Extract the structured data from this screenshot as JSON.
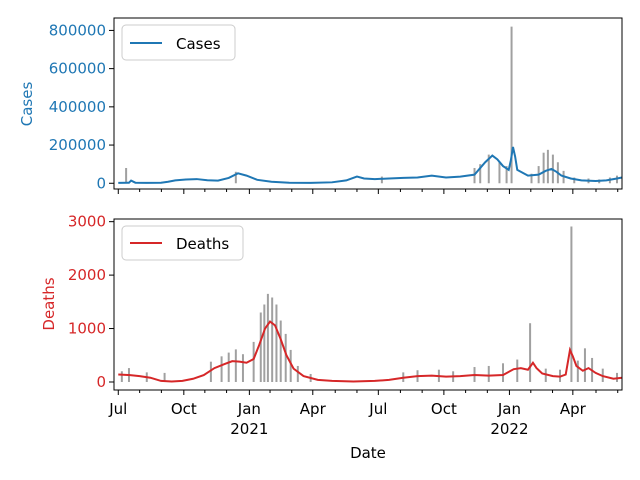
{
  "chart_data": [
    {
      "type": "line",
      "panel": "top",
      "ylabel": "Cases",
      "color": "#1f77b4",
      "raw_color": "#a0a0a0",
      "ylim": [
        -30000,
        865000
      ],
      "yticks": [
        0,
        200000,
        400000,
        600000,
        800000
      ],
      "ytick_labels": [
        "0",
        "200000",
        "400000",
        "600000",
        "800000"
      ],
      "legend": [
        "Cases"
      ],
      "legend_position": "top-left",
      "series_smoothed": {
        "name": "Cases",
        "points": [
          [
            0,
            2000
          ],
          [
            15,
            3000
          ],
          [
            18,
            14000
          ],
          [
            24,
            3000
          ],
          [
            40,
            2000
          ],
          [
            60,
            3000
          ],
          [
            70,
            8000
          ],
          [
            80,
            15000
          ],
          [
            95,
            20000
          ],
          [
            110,
            22000
          ],
          [
            125,
            16000
          ],
          [
            140,
            14000
          ],
          [
            155,
            28000
          ],
          [
            168,
            52000
          ],
          [
            180,
            40000
          ],
          [
            195,
            18000
          ],
          [
            215,
            8000
          ],
          [
            240,
            3000
          ],
          [
            270,
            2000
          ],
          [
            300,
            5000
          ],
          [
            320,
            15000
          ],
          [
            335,
            35000
          ],
          [
            345,
            25000
          ],
          [
            360,
            22000
          ],
          [
            380,
            25000
          ],
          [
            400,
            28000
          ],
          [
            420,
            30000
          ],
          [
            440,
            40000
          ],
          [
            460,
            30000
          ],
          [
            480,
            35000
          ],
          [
            500,
            45000
          ],
          [
            515,
            110000
          ],
          [
            525,
            145000
          ],
          [
            532,
            125000
          ],
          [
            540,
            90000
          ],
          [
            548,
            70000
          ],
          [
            551,
            120000
          ],
          [
            554,
            190000
          ],
          [
            557,
            140000
          ],
          [
            560,
            70000
          ],
          [
            575,
            40000
          ],
          [
            590,
            45000
          ],
          [
            600,
            65000
          ],
          [
            608,
            75000
          ],
          [
            615,
            60000
          ],
          [
            622,
            40000
          ],
          [
            635,
            25000
          ],
          [
            650,
            15000
          ],
          [
            670,
            12000
          ],
          [
            685,
            15000
          ],
          [
            700,
            25000
          ],
          [
            707,
            30000
          ]
        ]
      },
      "series_raw_spikes": [
        [
          11,
          80000
        ],
        [
          165,
          60000
        ],
        [
          370,
          35000
        ],
        [
          500,
          80000
        ],
        [
          508,
          100000
        ],
        [
          520,
          150000
        ],
        [
          535,
          110000
        ],
        [
          545,
          90000
        ],
        [
          552,
          820000
        ],
        [
          580,
          50000
        ],
        [
          590,
          90000
        ],
        [
          597,
          160000
        ],
        [
          603,
          175000
        ],
        [
          610,
          150000
        ],
        [
          617,
          110000
        ],
        [
          625,
          65000
        ],
        [
          640,
          30000
        ],
        [
          660,
          25000
        ],
        [
          675,
          20000
        ],
        [
          690,
          30000
        ],
        [
          700,
          40000
        ]
      ]
    },
    {
      "type": "line",
      "panel": "bottom",
      "ylabel": "Deaths",
      "color": "#d62728",
      "raw_color": "#a0a0a0",
      "ylim": [
        -150,
        3050
      ],
      "yticks": [
        0,
        1000,
        2000,
        3000
      ],
      "ytick_labels": [
        "0",
        "1000",
        "2000",
        "3000"
      ],
      "legend": [
        "Deaths"
      ],
      "legend_position": "top-left",
      "xlabel": "Date",
      "xlim": [
        -6,
        707
      ],
      "xticks": [
        0,
        92,
        184,
        273,
        365,
        457,
        549,
        638
      ],
      "xtick_labels": [
        "Jul",
        "Oct",
        "Jan\n2021",
        "Apr",
        "Jul",
        "Oct",
        "Jan\n2022",
        "Apr"
      ],
      "series_smoothed": {
        "name": "Deaths",
        "points": [
          [
            0,
            140
          ],
          [
            15,
            130
          ],
          [
            30,
            110
          ],
          [
            45,
            80
          ],
          [
            60,
            20
          ],
          [
            75,
            10
          ],
          [
            90,
            20
          ],
          [
            105,
            60
          ],
          [
            120,
            130
          ],
          [
            135,
            260
          ],
          [
            150,
            340
          ],
          [
            160,
            390
          ],
          [
            170,
            380
          ],
          [
            180,
            360
          ],
          [
            190,
            430
          ],
          [
            198,
            700
          ],
          [
            206,
            1000
          ],
          [
            213,
            1130
          ],
          [
            220,
            1060
          ],
          [
            228,
            800
          ],
          [
            236,
            500
          ],
          [
            246,
            250
          ],
          [
            260,
            110
          ],
          [
            280,
            40
          ],
          [
            300,
            20
          ],
          [
            330,
            10
          ],
          [
            360,
            20
          ],
          [
            380,
            40
          ],
          [
            400,
            80
          ],
          [
            420,
            110
          ],
          [
            440,
            120
          ],
          [
            460,
            100
          ],
          [
            480,
            110
          ],
          [
            500,
            130
          ],
          [
            520,
            120
          ],
          [
            540,
            130
          ],
          [
            555,
            240
          ],
          [
            565,
            260
          ],
          [
            575,
            230
          ],
          [
            582,
            360
          ],
          [
            587,
            260
          ],
          [
            595,
            160
          ],
          [
            610,
            110
          ],
          [
            620,
            100
          ],
          [
            628,
            140
          ],
          [
            634,
            600
          ],
          [
            638,
            480
          ],
          [
            643,
            300
          ],
          [
            652,
            210
          ],
          [
            660,
            260
          ],
          [
            670,
            170
          ],
          [
            680,
            110
          ],
          [
            695,
            60
          ],
          [
            707,
            80
          ]
        ]
      },
      "series_raw_spikes": [
        [
          5,
          200
        ],
        [
          15,
          260
        ],
        [
          40,
          180
        ],
        [
          65,
          170
        ],
        [
          130,
          380
        ],
        [
          145,
          480
        ],
        [
          155,
          550
        ],
        [
          165,
          610
        ],
        [
          175,
          520
        ],
        [
          190,
          750
        ],
        [
          200,
          1300
        ],
        [
          205,
          1450
        ],
        [
          210,
          1650
        ],
        [
          216,
          1580
        ],
        [
          222,
          1450
        ],
        [
          228,
          1150
        ],
        [
          235,
          900
        ],
        [
          242,
          600
        ],
        [
          252,
          300
        ],
        [
          270,
          150
        ],
        [
          400,
          180
        ],
        [
          420,
          220
        ],
        [
          450,
          230
        ],
        [
          470,
          200
        ],
        [
          500,
          280
        ],
        [
          520,
          300
        ],
        [
          540,
          350
        ],
        [
          560,
          420
        ],
        [
          578,
          1100
        ],
        [
          600,
          250
        ],
        [
          620,
          230
        ],
        [
          636,
          2910
        ],
        [
          645,
          400
        ],
        [
          655,
          630
        ],
        [
          665,
          450
        ],
        [
          680,
          250
        ],
        [
          700,
          170
        ]
      ]
    }
  ]
}
